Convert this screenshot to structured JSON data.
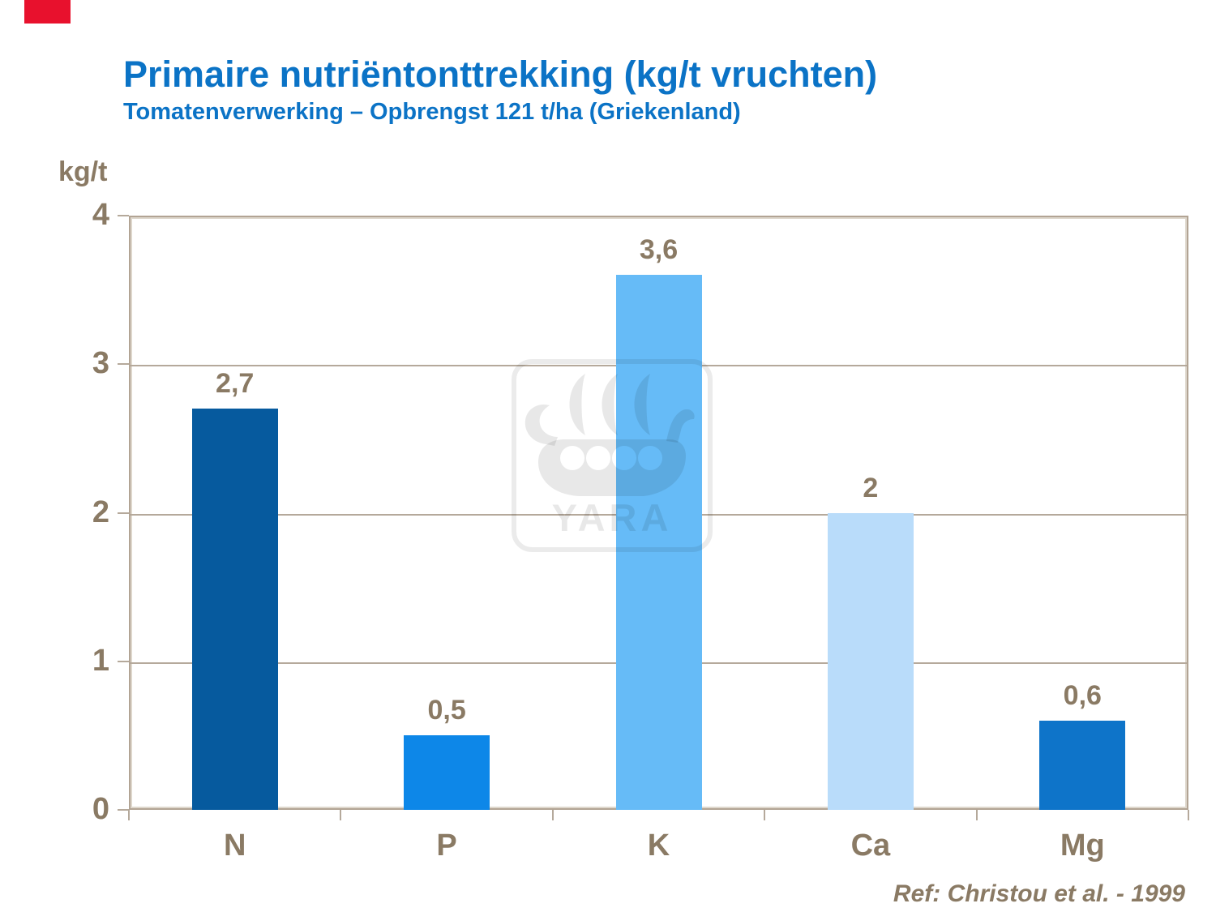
{
  "header": {
    "title": "Primaire nutriëntonttrekking (kg/t vruchten)",
    "subtitle": "Tomatenverwerking – Opbrengst 121 t/ha (Griekenland)",
    "title_color": "#0b73c6"
  },
  "chart_data": {
    "type": "bar",
    "title": "Primaire nutriëntonttrekking (kg/t vruchten)",
    "subtitle": "Tomatenverwerking – Opbrengst 121 t/ha (Griekenland)",
    "ylabel": "kg/t",
    "xlabel": "",
    "categories": [
      "N",
      "P",
      "K",
      "Ca",
      "Mg"
    ],
    "values": [
      2.7,
      0.5,
      3.6,
      2,
      0.6
    ],
    "value_labels": [
      "2,7",
      "0,5",
      "3,6",
      "2",
      "0,6"
    ],
    "bar_colors": [
      "#065a9e",
      "#0d87e8",
      "#66bbf7",
      "#b9dcfa",
      "#0e74c9"
    ],
    "ylim": [
      0,
      4
    ],
    "yticks": [
      0,
      1,
      2,
      3,
      4
    ],
    "ytick_labels": [
      "0",
      "1",
      "2",
      "3",
      "4"
    ],
    "grid": true,
    "legend": false,
    "text_color": "#8a7a64",
    "grid_color": "#b5a99b",
    "frame_color": "#b2a494"
  },
  "watermark": {
    "text": "YARA"
  },
  "footer": {
    "reference": "Ref: Christou et al. - 1999"
  },
  "corner_flag": {
    "color": "#e8112d"
  }
}
